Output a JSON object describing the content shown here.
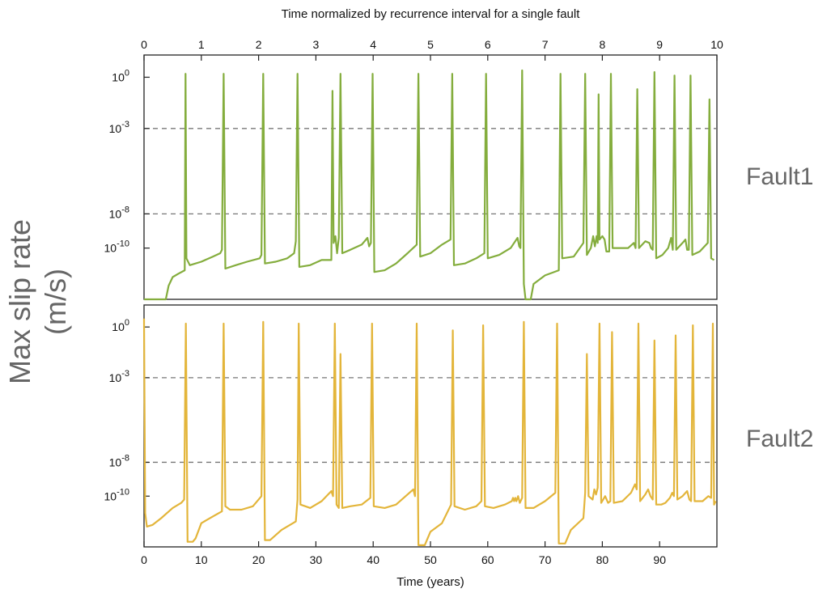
{
  "chart_data": {
    "type": "line",
    "title": "",
    "top_axis": {
      "label": "Time normalized by recurrence interval for a single fault",
      "range": [
        0,
        10
      ],
      "ticks": [
        0,
        1,
        2,
        3,
        4,
        5,
        6,
        7,
        8,
        9,
        10
      ]
    },
    "xlabel": "Time (years)",
    "xlim": [
      0,
      100
    ],
    "x_ticks": [
      0,
      10,
      20,
      30,
      40,
      50,
      60,
      70,
      80,
      90
    ],
    "ylabel": "Max slip rate (m/s)",
    "ylabel_lines": [
      "Max slip rate",
      "(m/s)"
    ],
    "yscale": "log",
    "ylim_log10": [
      -13,
      1.3
    ],
    "y_ticks": [
      {
        "exp": 0,
        "label": "10",
        "sup": "0"
      },
      {
        "exp": -3,
        "label": "10",
        "sup": "-3"
      },
      {
        "exp": -8,
        "label": "10",
        "sup": "-8"
      },
      {
        "exp": -10,
        "label": "10",
        "sup": "-10"
      }
    ],
    "reference_lines_log10": [
      -3,
      -8
    ],
    "grid": false,
    "series": [
      {
        "name": "Fault1",
        "color": "#84ad3d",
        "points_log10": [
          [
            0,
            -13
          ],
          [
            3.8,
            -13
          ],
          [
            4.3,
            -12.2
          ],
          [
            5,
            -11.7
          ],
          [
            6,
            -11.5
          ],
          [
            7.1,
            -11.3
          ],
          [
            7.25,
            0.2
          ],
          [
            7.4,
            -10.6
          ],
          [
            8,
            -11
          ],
          [
            10,
            -10.8
          ],
          [
            12,
            -10.5
          ],
          [
            13.3,
            -10.3
          ],
          [
            13.6,
            -10.1
          ],
          [
            13.9,
            0.2
          ],
          [
            14.2,
            -11.2
          ],
          [
            16,
            -11
          ],
          [
            18,
            -10.8
          ],
          [
            20.2,
            -10.6
          ],
          [
            20.5,
            -10.4
          ],
          [
            20.8,
            0.2
          ],
          [
            21.1,
            -10.9
          ],
          [
            23,
            -10.8
          ],
          [
            25,
            -10.6
          ],
          [
            26.2,
            -10.3
          ],
          [
            26.5,
            -9.6
          ],
          [
            26.8,
            0.2
          ],
          [
            27.1,
            -11.1
          ],
          [
            29,
            -11
          ],
          [
            31,
            -10.7
          ],
          [
            32.7,
            -10.7
          ],
          [
            32.9,
            -0.8
          ],
          [
            33.1,
            -9.7
          ],
          [
            33.4,
            -9.3
          ],
          [
            33.7,
            -10.3
          ],
          [
            34,
            -9.4
          ],
          [
            34.3,
            0.2
          ],
          [
            34.6,
            -10.3
          ],
          [
            36,
            -10.1
          ],
          [
            38,
            -9.8
          ],
          [
            39,
            -9.4
          ],
          [
            39.3,
            -9.9
          ],
          [
            39.6,
            -9.7
          ],
          [
            39.9,
            0.2
          ],
          [
            40.2,
            -11.4
          ],
          [
            42,
            -11.3
          ],
          [
            44,
            -10.9
          ],
          [
            46,
            -10.3
          ],
          [
            47.6,
            -9.8
          ],
          [
            47.9,
            0.2
          ],
          [
            48.2,
            -10.5
          ],
          [
            50,
            -10.3
          ],
          [
            52,
            -9.8
          ],
          [
            53.5,
            -9.5
          ],
          [
            53.8,
            0.2
          ],
          [
            54.1,
            -11
          ],
          [
            56,
            -10.9
          ],
          [
            58,
            -10.6
          ],
          [
            59.4,
            -10.3
          ],
          [
            59.7,
            0.2
          ],
          [
            60,
            -10.6
          ],
          [
            62,
            -10.4
          ],
          [
            64,
            -10
          ],
          [
            65.2,
            -9.4
          ],
          [
            65.5,
            -9.9
          ],
          [
            65.7,
            -10
          ],
          [
            66,
            0.4
          ],
          [
            66.3,
            -12.1
          ],
          [
            66.6,
            -13
          ],
          [
            67.5,
            -13
          ],
          [
            68,
            -12.1
          ],
          [
            70,
            -11.6
          ],
          [
            72.4,
            -11.3
          ],
          [
            72.7,
            0.2
          ],
          [
            73,
            -10.6
          ],
          [
            75,
            -10.5
          ],
          [
            76.7,
            -9.7
          ],
          [
            77,
            0.2
          ],
          [
            77.3,
            -10.4
          ],
          [
            78,
            -10
          ],
          [
            78.4,
            -9.3
          ],
          [
            78.7,
            -9.9
          ],
          [
            79,
            -9.3
          ],
          [
            79.2,
            -9.7
          ],
          [
            79.35,
            -1
          ],
          [
            79.5,
            -9.5
          ],
          [
            80,
            -9.3
          ],
          [
            80.4,
            -9.5
          ],
          [
            80.7,
            -10.2
          ],
          [
            81.2,
            -10.2
          ],
          [
            81.5,
            0.2
          ],
          [
            81.8,
            -10
          ],
          [
            83,
            -10
          ],
          [
            84.5,
            -10
          ],
          [
            85.5,
            -9.7
          ],
          [
            85.8,
            -10
          ],
          [
            86.1,
            -0.7
          ],
          [
            86.4,
            -10
          ],
          [
            87.5,
            -9.6
          ],
          [
            88.2,
            -9.7
          ],
          [
            88.5,
            -10
          ],
          [
            88.8,
            -10.1
          ],
          [
            89.1,
            0.3
          ],
          [
            89.4,
            -10.6
          ],
          [
            90.5,
            -10.4
          ],
          [
            91.5,
            -10
          ],
          [
            92,
            -9.4
          ],
          [
            92.3,
            -10.1
          ],
          [
            92.6,
            0.1
          ],
          [
            92.9,
            -10.1
          ],
          [
            94,
            -9.7
          ],
          [
            94.5,
            -9.5
          ],
          [
            94.8,
            -10.1
          ],
          [
            95.1,
            -10.1
          ],
          [
            95.4,
            0.1
          ],
          [
            95.7,
            -10.4
          ],
          [
            97,
            -10.2
          ],
          [
            98.4,
            -9.7
          ],
          [
            98.7,
            -1.3
          ],
          [
            99,
            -10.6
          ],
          [
            99.5,
            -10.7
          ]
        ]
      },
      {
        "name": "Fault2",
        "color": "#e3b53a",
        "points_log10": [
          [
            0,
            0.5
          ],
          [
            0.2,
            -11
          ],
          [
            0.5,
            -11.8
          ],
          [
            1.5,
            -11.7
          ],
          [
            3,
            -11.3
          ],
          [
            5,
            -10.7
          ],
          [
            6.5,
            -10.4
          ],
          [
            7,
            -10.2
          ],
          [
            7.3,
            0.2
          ],
          [
            7.6,
            -12.7
          ],
          [
            8.5,
            -12.7
          ],
          [
            9,
            -12.5
          ],
          [
            10,
            -11.6
          ],
          [
            12,
            -11.2
          ],
          [
            13.6,
            -10.9
          ],
          [
            13.9,
            0.2
          ],
          [
            14.2,
            -10.6
          ],
          [
            15,
            -10.8
          ],
          [
            17,
            -10.8
          ],
          [
            19,
            -10.6
          ],
          [
            20.5,
            -10
          ],
          [
            20.8,
            0.3
          ],
          [
            21.1,
            -12.6
          ],
          [
            22,
            -12.6
          ],
          [
            24,
            -12
          ],
          [
            26.5,
            -11.5
          ],
          [
            26.8,
            -10.2
          ],
          [
            27,
            0.2
          ],
          [
            27.3,
            -10.5
          ],
          [
            29,
            -10.7
          ],
          [
            31,
            -10.3
          ],
          [
            32.7,
            -9.7
          ],
          [
            33,
            -10
          ],
          [
            33.3,
            0.2
          ],
          [
            33.6,
            -10.5
          ],
          [
            34,
            -10.7
          ],
          [
            34.3,
            -1.6
          ],
          [
            34.6,
            -10.7
          ],
          [
            36,
            -10.6
          ],
          [
            38,
            -10.5
          ],
          [
            39.5,
            -10.1
          ],
          [
            39.8,
            0.2
          ],
          [
            40.1,
            -10.6
          ],
          [
            42,
            -10.7
          ],
          [
            44,
            -10.5
          ],
          [
            46,
            -9.9
          ],
          [
            47,
            -9.6
          ],
          [
            47.3,
            -10
          ],
          [
            47.6,
            0.2
          ],
          [
            47.9,
            -12.9
          ],
          [
            49,
            -12.9
          ],
          [
            50,
            -12.1
          ],
          [
            52,
            -11.6
          ],
          [
            53.6,
            -10.5
          ],
          [
            53.9,
            -0.2
          ],
          [
            54.2,
            -10.6
          ],
          [
            56,
            -10.8
          ],
          [
            58,
            -10.6
          ],
          [
            58.9,
            -10.3
          ],
          [
            59.2,
            0.1
          ],
          [
            59.5,
            -10.6
          ],
          [
            61,
            -10.7
          ],
          [
            63,
            -10.5
          ],
          [
            64.2,
            -10.3
          ],
          [
            64.4,
            -10.1
          ],
          [
            64.6,
            -10.3
          ],
          [
            64.8,
            -10.1
          ],
          [
            65,
            -10.3
          ],
          [
            65.3,
            -10
          ],
          [
            65.6,
            -10.4
          ],
          [
            66,
            -10.1
          ],
          [
            66.3,
            0.3
          ],
          [
            66.6,
            -10.7
          ],
          [
            68,
            -10.7
          ],
          [
            70,
            -10.3
          ],
          [
            71.8,
            -9.8
          ],
          [
            72.1,
            0.2
          ],
          [
            72.4,
            -12.8
          ],
          [
            73.5,
            -12.8
          ],
          [
            74.5,
            -12
          ],
          [
            76.7,
            -11.3
          ],
          [
            77,
            -9.8
          ],
          [
            77.3,
            -1.6
          ],
          [
            77.6,
            -10
          ],
          [
            78.3,
            -10.2
          ],
          [
            78.6,
            -9.6
          ],
          [
            78.9,
            -9.9
          ],
          [
            79.2,
            -9.5
          ],
          [
            79.5,
            0.2
          ],
          [
            79.8,
            -10.4
          ],
          [
            80.5,
            -10
          ],
          [
            81,
            -10.4
          ],
          [
            81.4,
            -10.3
          ],
          [
            81.7,
            -0.3
          ],
          [
            82,
            -10.4
          ],
          [
            83.5,
            -10.3
          ],
          [
            85,
            -9.8
          ],
          [
            85.7,
            -9.3
          ],
          [
            86,
            -9.6
          ],
          [
            86.3,
            0.2
          ],
          [
            86.6,
            -10.3
          ],
          [
            87.5,
            -9.9
          ],
          [
            88,
            -9.6
          ],
          [
            88.4,
            -10
          ],
          [
            88.8,
            -10.2
          ],
          [
            89.1,
            -0.8
          ],
          [
            89.4,
            -10.5
          ],
          [
            90.3,
            -10.5
          ],
          [
            91,
            -10.4
          ],
          [
            91.8,
            -10.1
          ],
          [
            92.2,
            -9.8
          ],
          [
            92.5,
            -10
          ],
          [
            92.8,
            -0.5
          ],
          [
            93.1,
            -10.2
          ],
          [
            94,
            -10
          ],
          [
            94.8,
            -9.7
          ],
          [
            95.2,
            -10.2
          ],
          [
            95.5,
            -10.3
          ],
          [
            95.8,
            0.1
          ],
          [
            96.1,
            -10.3
          ],
          [
            97.5,
            -10.3
          ],
          [
            98.5,
            -10
          ],
          [
            99,
            -10.1
          ],
          [
            99.3,
            0.2
          ],
          [
            99.5,
            -10.5
          ],
          [
            99.8,
            -10.3
          ]
        ]
      }
    ]
  }
}
